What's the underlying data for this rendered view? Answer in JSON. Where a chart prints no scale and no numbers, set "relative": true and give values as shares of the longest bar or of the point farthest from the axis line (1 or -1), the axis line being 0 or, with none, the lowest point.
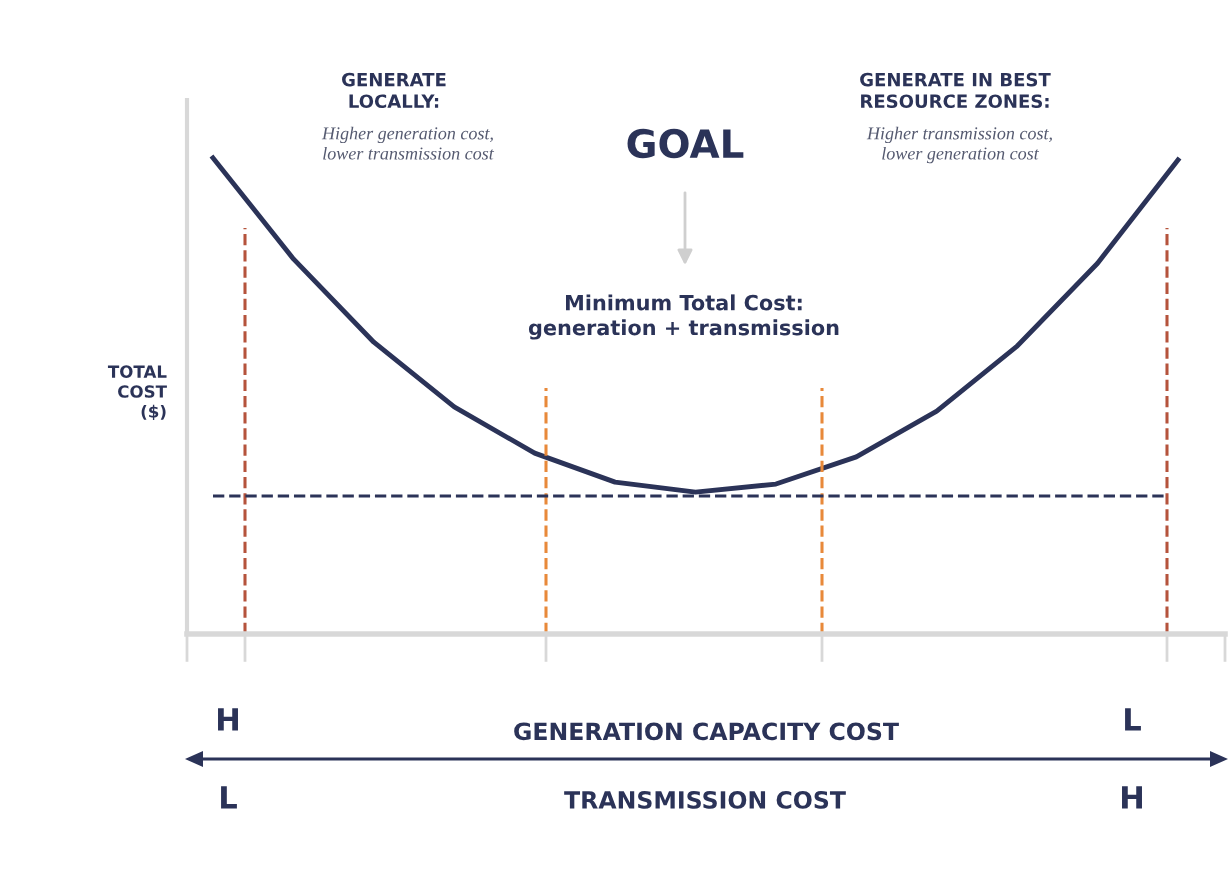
{
  "chart_data": {
    "type": "line",
    "relative": true,
    "categories": [
      null,
      null,
      null,
      null,
      null,
      null,
      null,
      null,
      null,
      null,
      null,
      null,
      null
    ],
    "series": [
      {
        "color": "#2b3358",
        "values": [
          1.0,
          0.788,
          0.613,
          0.477,
          0.38,
          0.319,
          0.298,
          0.315,
          0.372,
          0.468,
          0.605,
          0.779,
          0.996
        ]
      }
    ],
    "ylabel": "TOTAL\nCOST\n($)",
    "xlabel": "GENERATION CAPACITY COST",
    "ref_lines": [
      {
        "axis": "y",
        "value": 0.29,
        "color": "#2b3358",
        "line_style": "dashed"
      }
    ],
    "annotations": [
      "GENERATE\nLOCALLY:",
      "Higher generation cost,\nlower transmission cost",
      "GOAL",
      "Minimum Total Cost:\ngeneration + transmission",
      "GENERATE IN BEST\nRESOURCE ZONES:",
      "Higher transmission cost,\nlower generation cost",
      "H",
      "L",
      "L",
      "H",
      "TRANSMISSION COST"
    ],
    "grid": false,
    "legend": false,
    "marker": "none",
    "line_style": "solid"
  }
}
